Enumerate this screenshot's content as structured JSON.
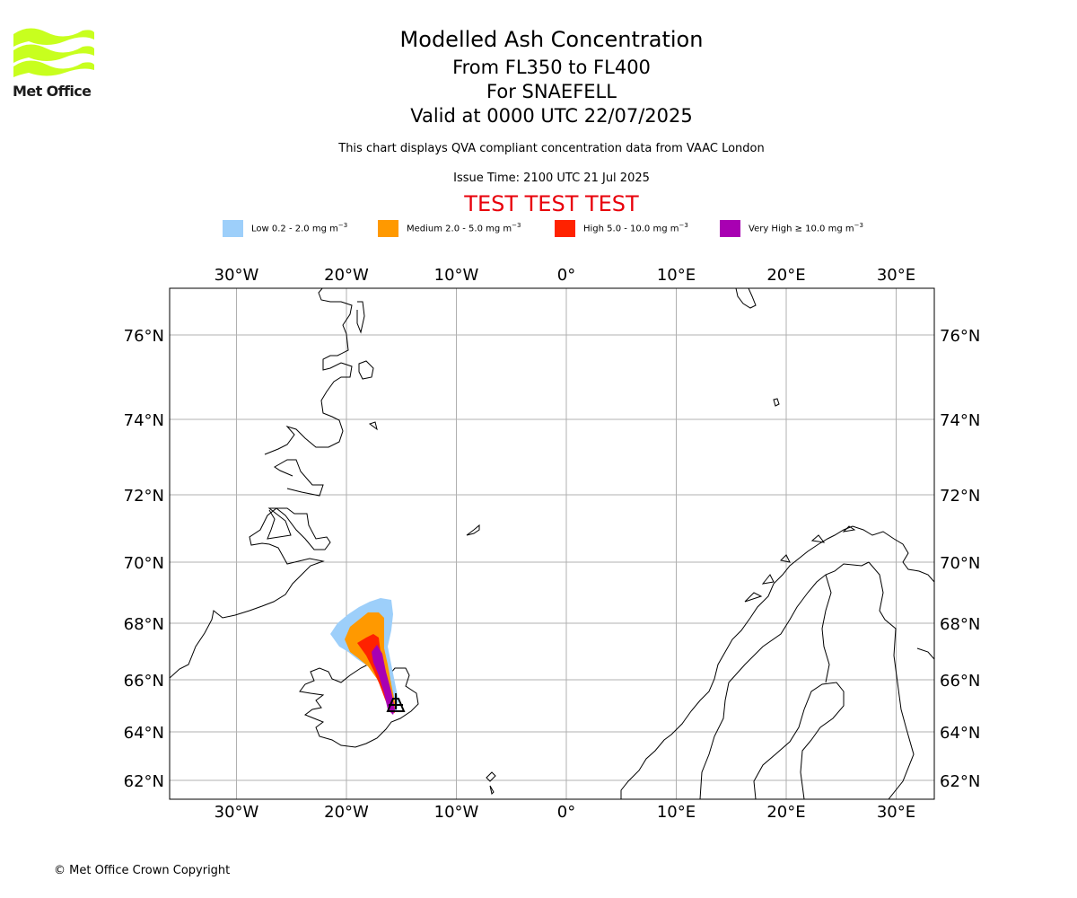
{
  "logo": {
    "text": "Met Office",
    "colors": [
      "#c8ff1e"
    ]
  },
  "header": {
    "title": "Modelled Ash Concentration",
    "levels": "From FL350 to FL400",
    "volcano": "For SNAEFELL",
    "valid": "Valid at 0000 UTC 22/07/2025",
    "description": "This chart displays QVA compliant concentration data from VAAC London",
    "issue_time": "Issue Time: 2100 UTC 21 Jul 2025",
    "banner": "TEST TEST TEST"
  },
  "legend": [
    {
      "label": "Low 0.2 - 2.0 mg m",
      "sup": "−3",
      "color": "#9dcffa"
    },
    {
      "label": "Medium 2.0 - 5.0 mg m",
      "sup": "−3",
      "color": "#ff9900"
    },
    {
      "label": "High 5.0 - 10.0 mg m",
      "sup": "−3",
      "color": "#ff2200"
    },
    {
      "label": "Very High  ≥  10.0 mg m",
      "sup": "−3",
      "color": "#a800b2"
    }
  ],
  "map": {
    "lon_ticks": [
      {
        "value": -30,
        "label": "30°W"
      },
      {
        "value": -20,
        "label": "20°W"
      },
      {
        "value": -10,
        "label": "10°W"
      },
      {
        "value": 0,
        "label": "0°"
      },
      {
        "value": 10,
        "label": "10°E"
      },
      {
        "value": 20,
        "label": "20°E"
      },
      {
        "value": 30,
        "label": "30°E"
      }
    ],
    "lat_ticks": [
      {
        "value": 76,
        "label": "76°N"
      },
      {
        "value": 74,
        "label": "74°N"
      },
      {
        "value": 72,
        "label": "72°N"
      },
      {
        "value": 70,
        "label": "70°N"
      },
      {
        "value": 68,
        "label": "68°N"
      },
      {
        "value": 66,
        "label": "66°N"
      },
      {
        "value": 64,
        "label": "64°N"
      },
      {
        "value": 62,
        "label": "62°N"
      }
    ],
    "grid": true
  },
  "footer": {
    "copyright": "© Met Office Crown Copyright"
  }
}
